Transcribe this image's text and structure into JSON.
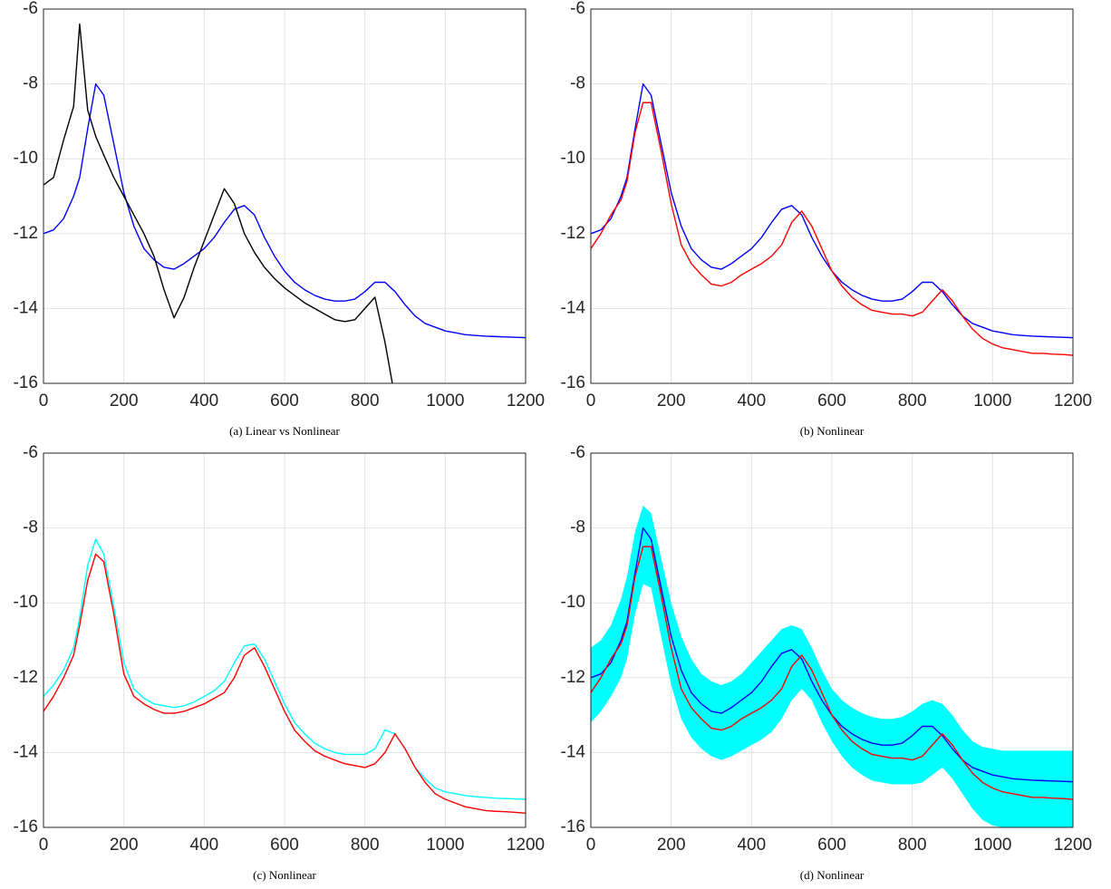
{
  "chart_data": [
    {
      "type": "line",
      "caption": "(a) Linear vs Nonlinear",
      "x": [
        0,
        25,
        50,
        75,
        90,
        110,
        130,
        150,
        175,
        200,
        225,
        250,
        275,
        300,
        325,
        350,
        375,
        400,
        425,
        450,
        475,
        500,
        525,
        550,
        575,
        600,
        625,
        650,
        675,
        700,
        725,
        750,
        775,
        800,
        825,
        850,
        875,
        900,
        925,
        950,
        975,
        1000,
        1025,
        1050,
        1075,
        1100,
        1125,
        1150,
        1175,
        1200
      ],
      "xlim": [
        0,
        1200
      ],
      "ylim": [
        -16,
        -6
      ],
      "xticks": [
        0,
        200,
        400,
        600,
        800,
        1000,
        1200
      ],
      "yticks": [
        -16,
        -14,
        -12,
        -10,
        -8,
        -6
      ],
      "grid": true,
      "series": [
        {
          "color": "#0000ff",
          "values": [
            -12,
            -11.9,
            -11.6,
            -11.0,
            -10.5,
            -9.2,
            -8.0,
            -8.3,
            -9.6,
            -10.9,
            -11.8,
            -12.4,
            -12.7,
            -12.9,
            -12.95,
            -12.8,
            -12.6,
            -12.4,
            -12.1,
            -11.7,
            -11.35,
            -11.25,
            -11.5,
            -12.1,
            -12.6,
            -13.0,
            -13.3,
            -13.5,
            -13.65,
            -13.75,
            -13.8,
            -13.8,
            -13.75,
            -13.55,
            -13.3,
            -13.3,
            -13.55,
            -13.9,
            -14.2,
            -14.4,
            -14.5,
            -14.6,
            -14.65,
            -14.7,
            -14.72,
            -14.74,
            -14.75,
            -14.76,
            -14.77,
            -14.78
          ]
        },
        {
          "color": "#000000",
          "values": [
            -10.7,
            -10.5,
            -9.5,
            -8.6,
            -6.4,
            -8.7,
            -9.4,
            -9.9,
            -10.5,
            -11.0,
            -11.5,
            -12.0,
            -12.6,
            -13.5,
            -14.25,
            -13.7,
            -12.9,
            -12.2,
            -11.5,
            -10.8,
            -11.2,
            -12.0,
            -12.5,
            -12.9,
            -13.2,
            -13.45,
            -13.65,
            -13.85,
            -14.0,
            -14.15,
            -14.3,
            -14.35,
            -14.3,
            -14.0,
            -13.7,
            -14.9,
            -16.4,
            null,
            null,
            null,
            null,
            null,
            null,
            null,
            null,
            null,
            null,
            null,
            null,
            null
          ]
        }
      ]
    },
    {
      "type": "line",
      "caption": "(b) Nonlinear",
      "x": [
        0,
        25,
        50,
        75,
        90,
        110,
        130,
        150,
        175,
        200,
        225,
        250,
        275,
        300,
        325,
        350,
        375,
        400,
        425,
        450,
        475,
        500,
        525,
        550,
        575,
        600,
        625,
        650,
        675,
        700,
        725,
        750,
        775,
        800,
        825,
        850,
        875,
        900,
        925,
        950,
        975,
        1000,
        1025,
        1050,
        1075,
        1100,
        1125,
        1150,
        1175,
        1200
      ],
      "xlim": [
        0,
        1200
      ],
      "ylim": [
        -16,
        -6
      ],
      "xticks": [
        0,
        200,
        400,
        600,
        800,
        1000,
        1200
      ],
      "yticks": [
        -16,
        -14,
        -12,
        -10,
        -8,
        -6
      ],
      "grid": true,
      "series": [
        {
          "color": "#0000ff",
          "values": [
            -12,
            -11.9,
            -11.6,
            -11.0,
            -10.5,
            -9.2,
            -8.0,
            -8.3,
            -9.6,
            -10.9,
            -11.8,
            -12.4,
            -12.7,
            -12.9,
            -12.95,
            -12.8,
            -12.6,
            -12.4,
            -12.1,
            -11.7,
            -11.35,
            -11.25,
            -11.5,
            -12.1,
            -12.6,
            -13.0,
            -13.3,
            -13.5,
            -13.65,
            -13.75,
            -13.8,
            -13.8,
            -13.75,
            -13.55,
            -13.3,
            -13.3,
            -13.55,
            -13.9,
            -14.2,
            -14.4,
            -14.5,
            -14.6,
            -14.65,
            -14.7,
            -14.72,
            -14.74,
            -14.75,
            -14.76,
            -14.77,
            -14.78
          ]
        },
        {
          "color": "#ff0000",
          "values": [
            -12.4,
            -12.0,
            -11.5,
            -11.1,
            -10.6,
            -9.3,
            -8.5,
            -8.5,
            -9.8,
            -11.2,
            -12.3,
            -12.8,
            -13.1,
            -13.35,
            -13.4,
            -13.3,
            -13.1,
            -12.95,
            -12.8,
            -12.6,
            -12.3,
            -11.7,
            -11.4,
            -11.8,
            -12.4,
            -13.0,
            -13.4,
            -13.7,
            -13.9,
            -14.05,
            -14.1,
            -14.15,
            -14.15,
            -14.2,
            -14.1,
            -13.8,
            -13.5,
            -13.8,
            -14.2,
            -14.55,
            -14.8,
            -14.95,
            -15.05,
            -15.1,
            -15.15,
            -15.2,
            -15.2,
            -15.22,
            -15.23,
            -15.25
          ]
        }
      ]
    },
    {
      "type": "line",
      "caption": "(c) Nonlinear",
      "x": [
        0,
        25,
        50,
        75,
        90,
        110,
        130,
        150,
        175,
        200,
        225,
        250,
        275,
        300,
        325,
        350,
        375,
        400,
        425,
        450,
        475,
        500,
        525,
        550,
        575,
        600,
        625,
        650,
        675,
        700,
        725,
        750,
        775,
        800,
        825,
        850,
        875,
        900,
        925,
        950,
        975,
        1000,
        1025,
        1050,
        1075,
        1100,
        1125,
        1150,
        1175,
        1200
      ],
      "xlim": [
        0,
        1200
      ],
      "ylim": [
        -16,
        -6
      ],
      "xticks": [
        0,
        200,
        400,
        600,
        800,
        1000,
        1200
      ],
      "yticks": [
        -16,
        -14,
        -12,
        -10,
        -8,
        -6
      ],
      "grid": true,
      "series": [
        {
          "color": "#00ffff",
          "values": [
            -12.5,
            -12.2,
            -11.8,
            -11.2,
            -10.4,
            -9.0,
            -8.3,
            -8.7,
            -10.1,
            -11.6,
            -12.3,
            -12.55,
            -12.7,
            -12.75,
            -12.8,
            -12.75,
            -12.65,
            -12.5,
            -12.35,
            -12.1,
            -11.6,
            -11.15,
            -11.1,
            -11.5,
            -12.1,
            -12.7,
            -13.2,
            -13.5,
            -13.75,
            -13.9,
            -14.0,
            -14.05,
            -14.05,
            -14.05,
            -13.9,
            -13.4,
            -13.5,
            -13.9,
            -14.4,
            -14.7,
            -14.95,
            -15.05,
            -15.1,
            -15.15,
            -15.18,
            -15.2,
            -15.22,
            -15.23,
            -15.24,
            -15.25
          ]
        },
        {
          "color": "#ff0000",
          "values": [
            -12.9,
            -12.5,
            -12.0,
            -11.4,
            -10.6,
            -9.4,
            -8.7,
            -8.9,
            -10.3,
            -11.9,
            -12.5,
            -12.7,
            -12.85,
            -12.95,
            -12.95,
            -12.9,
            -12.8,
            -12.7,
            -12.55,
            -12.4,
            -12.0,
            -11.4,
            -11.2,
            -11.7,
            -12.3,
            -12.9,
            -13.4,
            -13.7,
            -13.95,
            -14.1,
            -14.2,
            -14.3,
            -14.35,
            -14.4,
            -14.3,
            -14.0,
            -13.5,
            -13.9,
            -14.4,
            -14.8,
            -15.1,
            -15.25,
            -15.35,
            -15.45,
            -15.5,
            -15.55,
            -15.57,
            -15.58,
            -15.6,
            -15.62
          ]
        }
      ]
    },
    {
      "type": "line",
      "caption": "(d) Nonlinear",
      "x": [
        0,
        25,
        50,
        75,
        90,
        110,
        130,
        150,
        175,
        200,
        225,
        250,
        275,
        300,
        325,
        350,
        375,
        400,
        425,
        450,
        475,
        500,
        525,
        550,
        575,
        600,
        625,
        650,
        675,
        700,
        725,
        750,
        775,
        800,
        825,
        850,
        875,
        900,
        925,
        950,
        975,
        1000,
        1025,
        1050,
        1075,
        1100,
        1125,
        1150,
        1175,
        1200
      ],
      "xlim": [
        0,
        1200
      ],
      "ylim": [
        -16,
        -6
      ],
      "xticks": [
        0,
        200,
        400,
        600,
        800,
        1000,
        1200
      ],
      "yticks": [
        -16,
        -14,
        -12,
        -10,
        -8,
        -6
      ],
      "grid": true,
      "series": [
        {
          "color": "#00ffff",
          "values": [
            -11.2,
            -11.0,
            -10.6,
            -9.9,
            -9.3,
            -8.1,
            -7.4,
            -7.6,
            -8.8,
            -10.0,
            -10.9,
            -11.5,
            -11.9,
            -12.1,
            -12.2,
            -12.1,
            -11.9,
            -11.6,
            -11.3,
            -11.0,
            -10.7,
            -10.6,
            -10.7,
            -11.2,
            -11.8,
            -12.3,
            -12.6,
            -12.8,
            -12.95,
            -13.05,
            -13.1,
            -13.1,
            -13.05,
            -12.9,
            -12.7,
            -12.6,
            -12.7,
            -13.0,
            -13.4,
            -13.7,
            -13.85,
            -13.9,
            -13.95,
            -13.95,
            -13.95,
            -13.95,
            -13.95,
            -13.95,
            -13.95,
            -13.95
          ],
          "lower": [
            -13.2,
            -12.9,
            -12.5,
            -12.0,
            -11.5,
            -10.3,
            -9.5,
            -9.6,
            -10.9,
            -12.2,
            -13.1,
            -13.6,
            -13.9,
            -14.1,
            -14.2,
            -14.1,
            -13.95,
            -13.8,
            -13.65,
            -13.45,
            -13.1,
            -12.6,
            -12.3,
            -12.6,
            -13.2,
            -13.7,
            -14.1,
            -14.4,
            -14.6,
            -14.75,
            -14.8,
            -14.85,
            -14.85,
            -14.85,
            -14.8,
            -14.6,
            -14.4,
            -14.7,
            -15.1,
            -15.5,
            -15.8,
            -15.95,
            -16.0,
            -16.0,
            -16.0,
            -16.0,
            -16.0,
            -16.0,
            -16.0,
            -16.0
          ]
        },
        {
          "color": "#0000ff",
          "values": [
            -12,
            -11.9,
            -11.6,
            -11.0,
            -10.5,
            -9.2,
            -8.0,
            -8.3,
            -9.6,
            -10.9,
            -11.8,
            -12.4,
            -12.7,
            -12.9,
            -12.95,
            -12.8,
            -12.6,
            -12.4,
            -12.1,
            -11.7,
            -11.35,
            -11.25,
            -11.5,
            -12.1,
            -12.6,
            -13.0,
            -13.3,
            -13.5,
            -13.65,
            -13.75,
            -13.8,
            -13.8,
            -13.75,
            -13.55,
            -13.3,
            -13.3,
            -13.55,
            -13.9,
            -14.2,
            -14.4,
            -14.5,
            -14.6,
            -14.65,
            -14.7,
            -14.72,
            -14.74,
            -14.75,
            -14.76,
            -14.77,
            -14.78
          ]
        },
        {
          "color": "#ff0000",
          "values": [
            -12.4,
            -12.0,
            -11.5,
            -11.1,
            -10.6,
            -9.3,
            -8.5,
            -8.5,
            -9.8,
            -11.2,
            -12.3,
            -12.8,
            -13.1,
            -13.35,
            -13.4,
            -13.3,
            -13.1,
            -12.95,
            -12.8,
            -12.6,
            -12.3,
            -11.7,
            -11.4,
            -11.8,
            -12.4,
            -13.0,
            -13.4,
            -13.7,
            -13.9,
            -14.05,
            -14.1,
            -14.15,
            -14.15,
            -14.2,
            -14.1,
            -13.8,
            -13.5,
            -13.8,
            -14.2,
            -14.55,
            -14.8,
            -14.95,
            -15.05,
            -15.1,
            -15.15,
            -15.2,
            -15.2,
            -15.22,
            -15.23,
            -15.25
          ]
        }
      ]
    }
  ]
}
